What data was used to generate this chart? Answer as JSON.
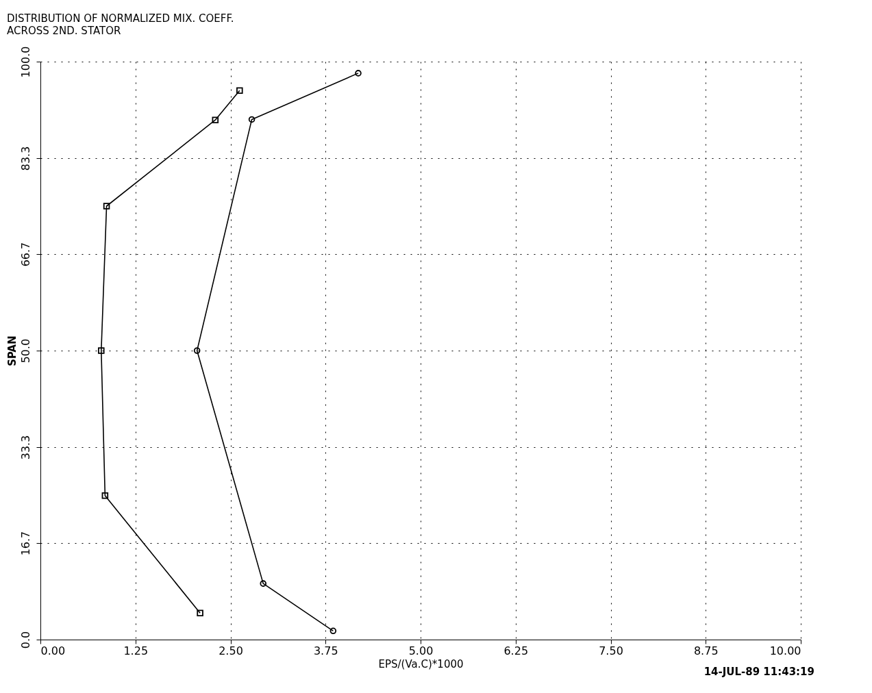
{
  "chart_data": {
    "type": "line",
    "title": "DISTRIBUTION OF NORMALIZED MIX. COEFF.",
    "subtitle": "ACROSS 2ND. STATOR",
    "xlabel": "EPS/(Va.C)*1000",
    "ylabel": "SPAN",
    "xlim": [
      0,
      10
    ],
    "ylim": [
      0,
      100
    ],
    "xticks": [
      {
        "value": 0,
        "label": "0.00"
      },
      {
        "value": 1.25,
        "label": "1.25"
      },
      {
        "value": 2.5,
        "label": "2.50"
      },
      {
        "value": 3.75,
        "label": "3.75"
      },
      {
        "value": 5,
        "label": "5.00"
      },
      {
        "value": 6.25,
        "label": "6.25"
      },
      {
        "value": 7.5,
        "label": "7.50"
      },
      {
        "value": 8.75,
        "label": "8.75"
      },
      {
        "value": 10,
        "label": "10.00"
      }
    ],
    "yticks": [
      {
        "value": 0,
        "label": "0.0"
      },
      {
        "value": 16.7,
        "label": "16.7"
      },
      {
        "value": 33.3,
        "label": "33.3"
      },
      {
        "value": 50,
        "label": "50.0"
      },
      {
        "value": 66.7,
        "label": "66.7"
      },
      {
        "value": 83.3,
        "label": "83.3"
      },
      {
        "value": 100,
        "label": "100.0"
      }
    ],
    "grid": true,
    "line_style": "solid",
    "series": [
      {
        "color": "#000000",
        "marker": "square",
        "x": [
          2.62,
          2.3,
          0.87,
          0.8,
          0.85,
          2.1
        ],
        "values": [
          95.0,
          89.9,
          75.0,
          50.0,
          24.9,
          4.6
        ]
      },
      {
        "color": "#000000",
        "marker": "circle",
        "x": [
          4.18,
          2.78,
          2.06,
          2.93,
          3.85
        ],
        "values": [
          98.0,
          90.0,
          50.0,
          9.7,
          1.5
        ]
      }
    ],
    "annotations": [
      "14-JUL-89 11:43:19"
    ]
  }
}
